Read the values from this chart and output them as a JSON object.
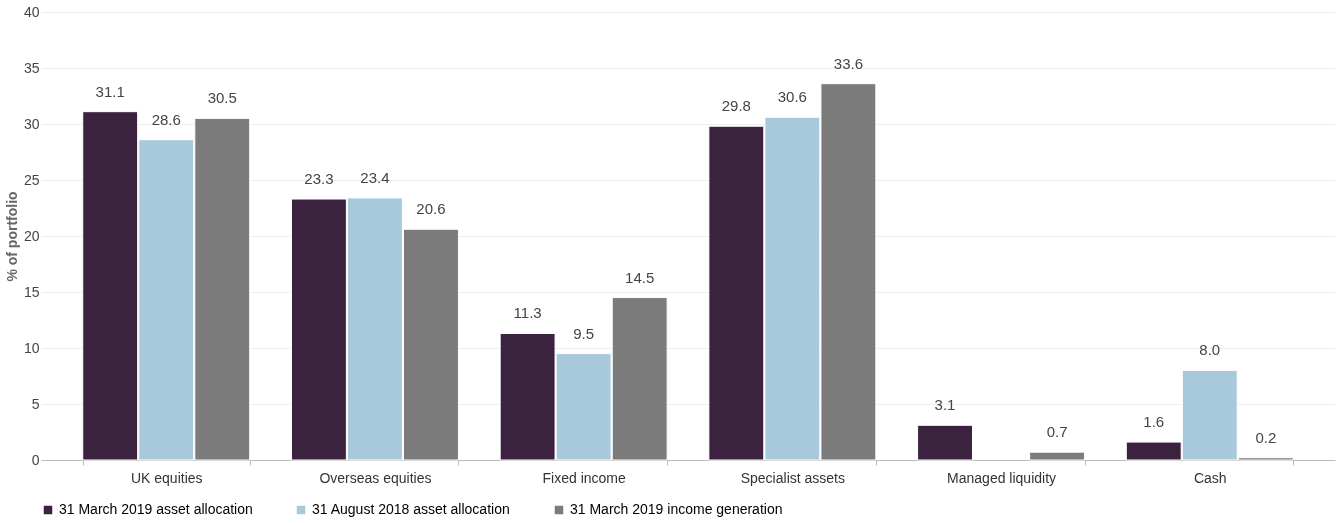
{
  "chart_data": {
    "type": "bar",
    "ylabel": "% of portfolio",
    "categories": [
      "UK equities",
      "Overseas equities",
      "Fixed income",
      "Specialist assets",
      "Managed liquidity",
      "Cash"
    ],
    "series": [
      {
        "name": "31 March 2019 asset allocation",
        "color": "#3b2340",
        "values": [
          31.1,
          23.3,
          11.3,
          29.8,
          3.1,
          1.6
        ],
        "value_labels": [
          "31.1",
          "23.3",
          "11.3",
          "29.8",
          "3.1",
          "1.6"
        ]
      },
      {
        "name": "31 August 2018 asset allocation",
        "color": "#a8c9dc",
        "values": [
          28.6,
          23.4,
          9.5,
          30.6,
          null,
          8.0
        ],
        "value_labels": [
          "28.6",
          "23.4",
          "9.5",
          "30.6",
          null,
          "8.0"
        ]
      },
      {
        "name": "31 March 2019 income generation",
        "color": "#7b7b7b",
        "values": [
          30.5,
          20.6,
          14.5,
          33.6,
          0.7,
          0.2
        ],
        "value_labels": [
          "30.5",
          "20.6",
          "14.5",
          "33.6",
          "0.7",
          "0.2"
        ]
      }
    ],
    "ylim": [
      0,
      40
    ],
    "yticks": [
      0,
      5,
      10,
      15,
      20,
      25,
      30,
      35,
      40
    ],
    "grid": "y",
    "legend": "bottom"
  }
}
